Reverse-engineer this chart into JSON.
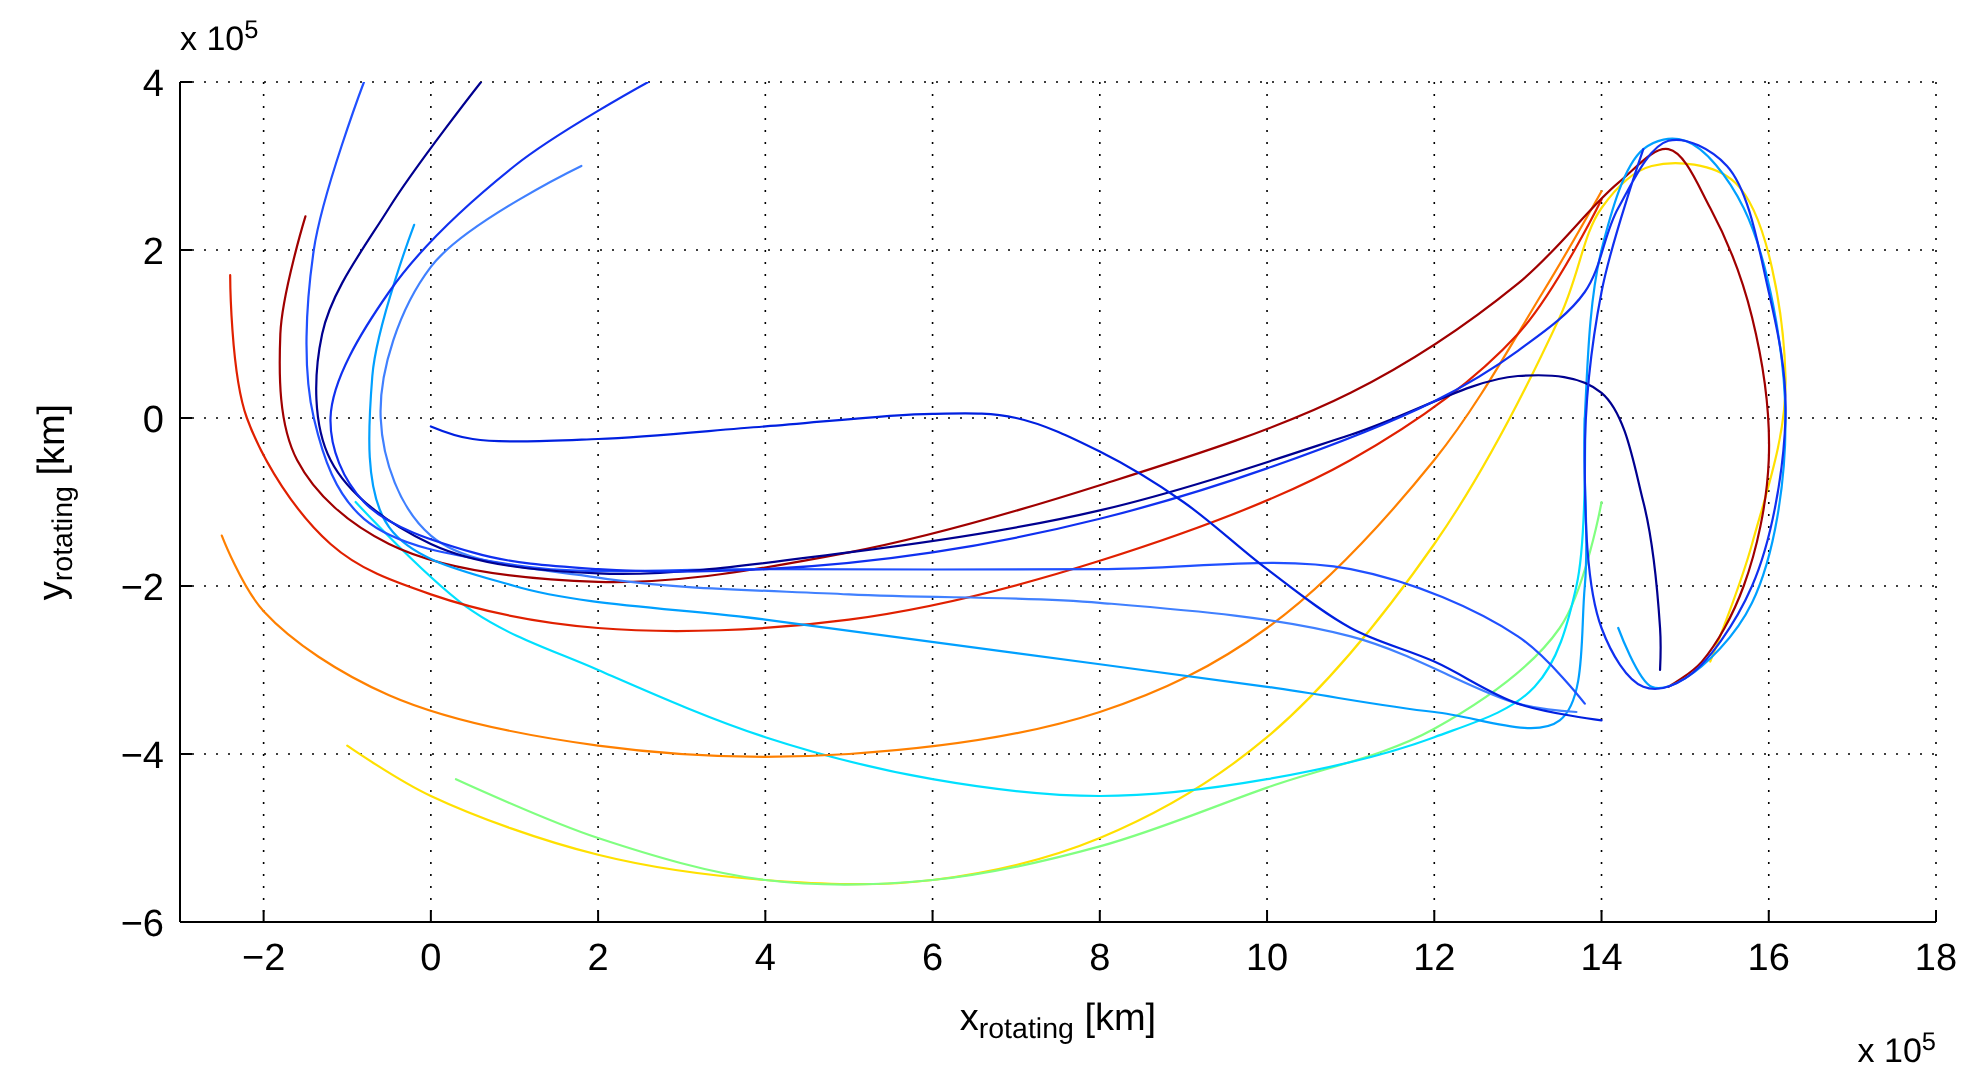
{
  "chart_data": {
    "type": "line",
    "xlabel": "x$_{rotating}$ [km]",
    "ylabel": "y$_{rotating}$ [km]",
    "annotations": [
      "x 10$^{5}$",
      "x 10$^{5}$"
    ],
    "xlim": [
      -3,
      18
    ],
    "ylim": [
      -6,
      4
    ],
    "xticks": [
      -2,
      0,
      2,
      4,
      6,
      8,
      10,
      12,
      14,
      16,
      18
    ],
    "yticks": [
      -6,
      -4,
      -2,
      0,
      2,
      4
    ],
    "grid": true,
    "series": [
      {
        "color": "#ffe000",
        "x": [
          -1,
          0,
          2,
          4,
          6,
          8,
          10,
          12,
          13.5,
          14,
          14.6,
          15.6,
          16.2,
          15.8,
          15.3
        ],
        "values": [
          -3.9,
          -4.5,
          -5.2,
          -5.5,
          -5.5,
          -5,
          -3.8,
          -1.5,
          1.2,
          2.5,
          3,
          2.8,
          0.5,
          -1.5,
          -2.9
        ]
      },
      {
        "color": "#80ff80",
        "x": [
          0.3,
          2,
          4,
          6,
          8,
          10,
          12,
          13.5,
          14
        ],
        "values": [
          -4.3,
          -5,
          -5.5,
          -5.5,
          -5.1,
          -4.4,
          -3.7,
          -2.5,
          -1
        ]
      },
      {
        "color": "#00e0ff",
        "x": [
          -0.9,
          0.5,
          2,
          4,
          6,
          8,
          10,
          12,
          13.2,
          13.7,
          13.8
        ],
        "values": [
          -1,
          -2.3,
          -3,
          -3.8,
          -4.3,
          -4.5,
          -4.3,
          -3.8,
          -3.2,
          -2,
          0
        ]
      },
      {
        "color": "#ff8000",
        "x": [
          -2.5,
          -2,
          -0.5,
          2,
          5,
          8,
          10,
          12,
          13.3,
          14
        ],
        "values": [
          -1.4,
          -2.3,
          -3.3,
          -3.9,
          -4,
          -3.5,
          -2.5,
          -0.5,
          1.5,
          2.7
        ]
      },
      {
        "color": "#e02000",
        "x": [
          -2.4,
          -2.2,
          -1.2,
          0,
          2,
          5,
          8,
          11,
          13,
          14
        ],
        "values": [
          1.7,
          0,
          -1.5,
          -2.1,
          -2.5,
          -2.4,
          -1.7,
          -0.5,
          1,
          2.6
        ]
      },
      {
        "color": "#a00000",
        "x": [
          -1.5,
          -1.8,
          -1.6,
          -0.5,
          2,
          5,
          8,
          11,
          13,
          14.2,
          14.8,
          15.3,
          15.8,
          16,
          15.7,
          15.2,
          14.8
        ],
        "values": [
          2.4,
          1,
          -0.5,
          -1.5,
          -1.95,
          -1.6,
          -0.8,
          0.3,
          1.6,
          2.8,
          3.2,
          2.5,
          1.2,
          -0.5,
          -2,
          -2.9,
          -3.2
        ]
      },
      {
        "color": "#00a0ff",
        "x": [
          -0.2,
          -0.7,
          -0.5,
          1,
          4,
          7,
          10,
          12,
          13.5,
          13.8,
          13.8,
          14,
          14.5,
          15,
          15.7,
          16.2,
          15.8,
          15,
          14.6,
          14.2
        ],
        "values": [
          2.3,
          0.5,
          -1.3,
          -2,
          -2.4,
          -2.8,
          -3.2,
          -3.5,
          -3.6,
          -2,
          0,
          2,
          3.2,
          3.3,
          2.5,
          0,
          -2.2,
          -3.1,
          -3.2,
          -2.5
        ]
      },
      {
        "color": "#4080ff",
        "x": [
          1.8,
          0,
          -0.6,
          0,
          2,
          5,
          8,
          11,
          13,
          13.7
        ],
        "values": [
          3,
          1.8,
          0,
          -1.4,
          -1.9,
          -2.1,
          -2.2,
          -2.6,
          -3.4,
          -3.5
        ]
      },
      {
        "color": "#2050ff",
        "x": [
          -0.8,
          -1.4,
          -1.4,
          -0.8,
          1,
          4,
          8,
          11,
          13,
          13.8
        ],
        "values": [
          4,
          2,
          0,
          -1.2,
          -1.75,
          -1.8,
          -1.8,
          -1.8,
          -2.6,
          -3.4
        ]
      },
      {
        "color": "#000090",
        "x": [
          0.6,
          -0.5,
          -1.3,
          -1.2,
          0,
          2,
          5,
          8,
          11,
          13,
          14,
          14.5,
          14.7,
          14.7
        ],
        "values": [
          4,
          2.5,
          1,
          -0.5,
          -1.5,
          -1.85,
          -1.6,
          -1.1,
          -0.2,
          0.5,
          0.3,
          -1,
          -2.5,
          -3
        ]
      },
      {
        "color": "#1030f0",
        "x": [
          2.6,
          1,
          -0.5,
          -1.2,
          -0.8,
          0.5,
          2,
          4,
          6,
          8,
          10,
          12,
          13,
          13.8,
          14.2,
          14.8,
          15.5,
          16,
          16.2,
          15.8,
          15,
          14.5,
          14,
          13.8,
          14,
          14.5
        ],
        "values": [
          4,
          3,
          1.5,
          0,
          -1,
          -1.6,
          -1.8,
          -1.8,
          -1.6,
          -1.2,
          -0.6,
          0.2,
          0.8,
          1.5,
          2.5,
          3.3,
          3,
          1.5,
          0,
          -2,
          -3.1,
          -3.2,
          -2.5,
          -0.5,
          1.5,
          3.2
        ]
      },
      {
        "color": "#0020e0",
        "x": [
          0,
          0.5,
          2,
          4,
          6,
          7,
          8,
          9,
          10,
          11,
          12,
          13,
          14
        ],
        "values": [
          -0.1,
          -0.25,
          -0.25,
          -0.1,
          0.05,
          0,
          -0.4,
          -1,
          -1.8,
          -2.5,
          -2.9,
          -3.4,
          -3.6
        ]
      }
    ]
  }
}
